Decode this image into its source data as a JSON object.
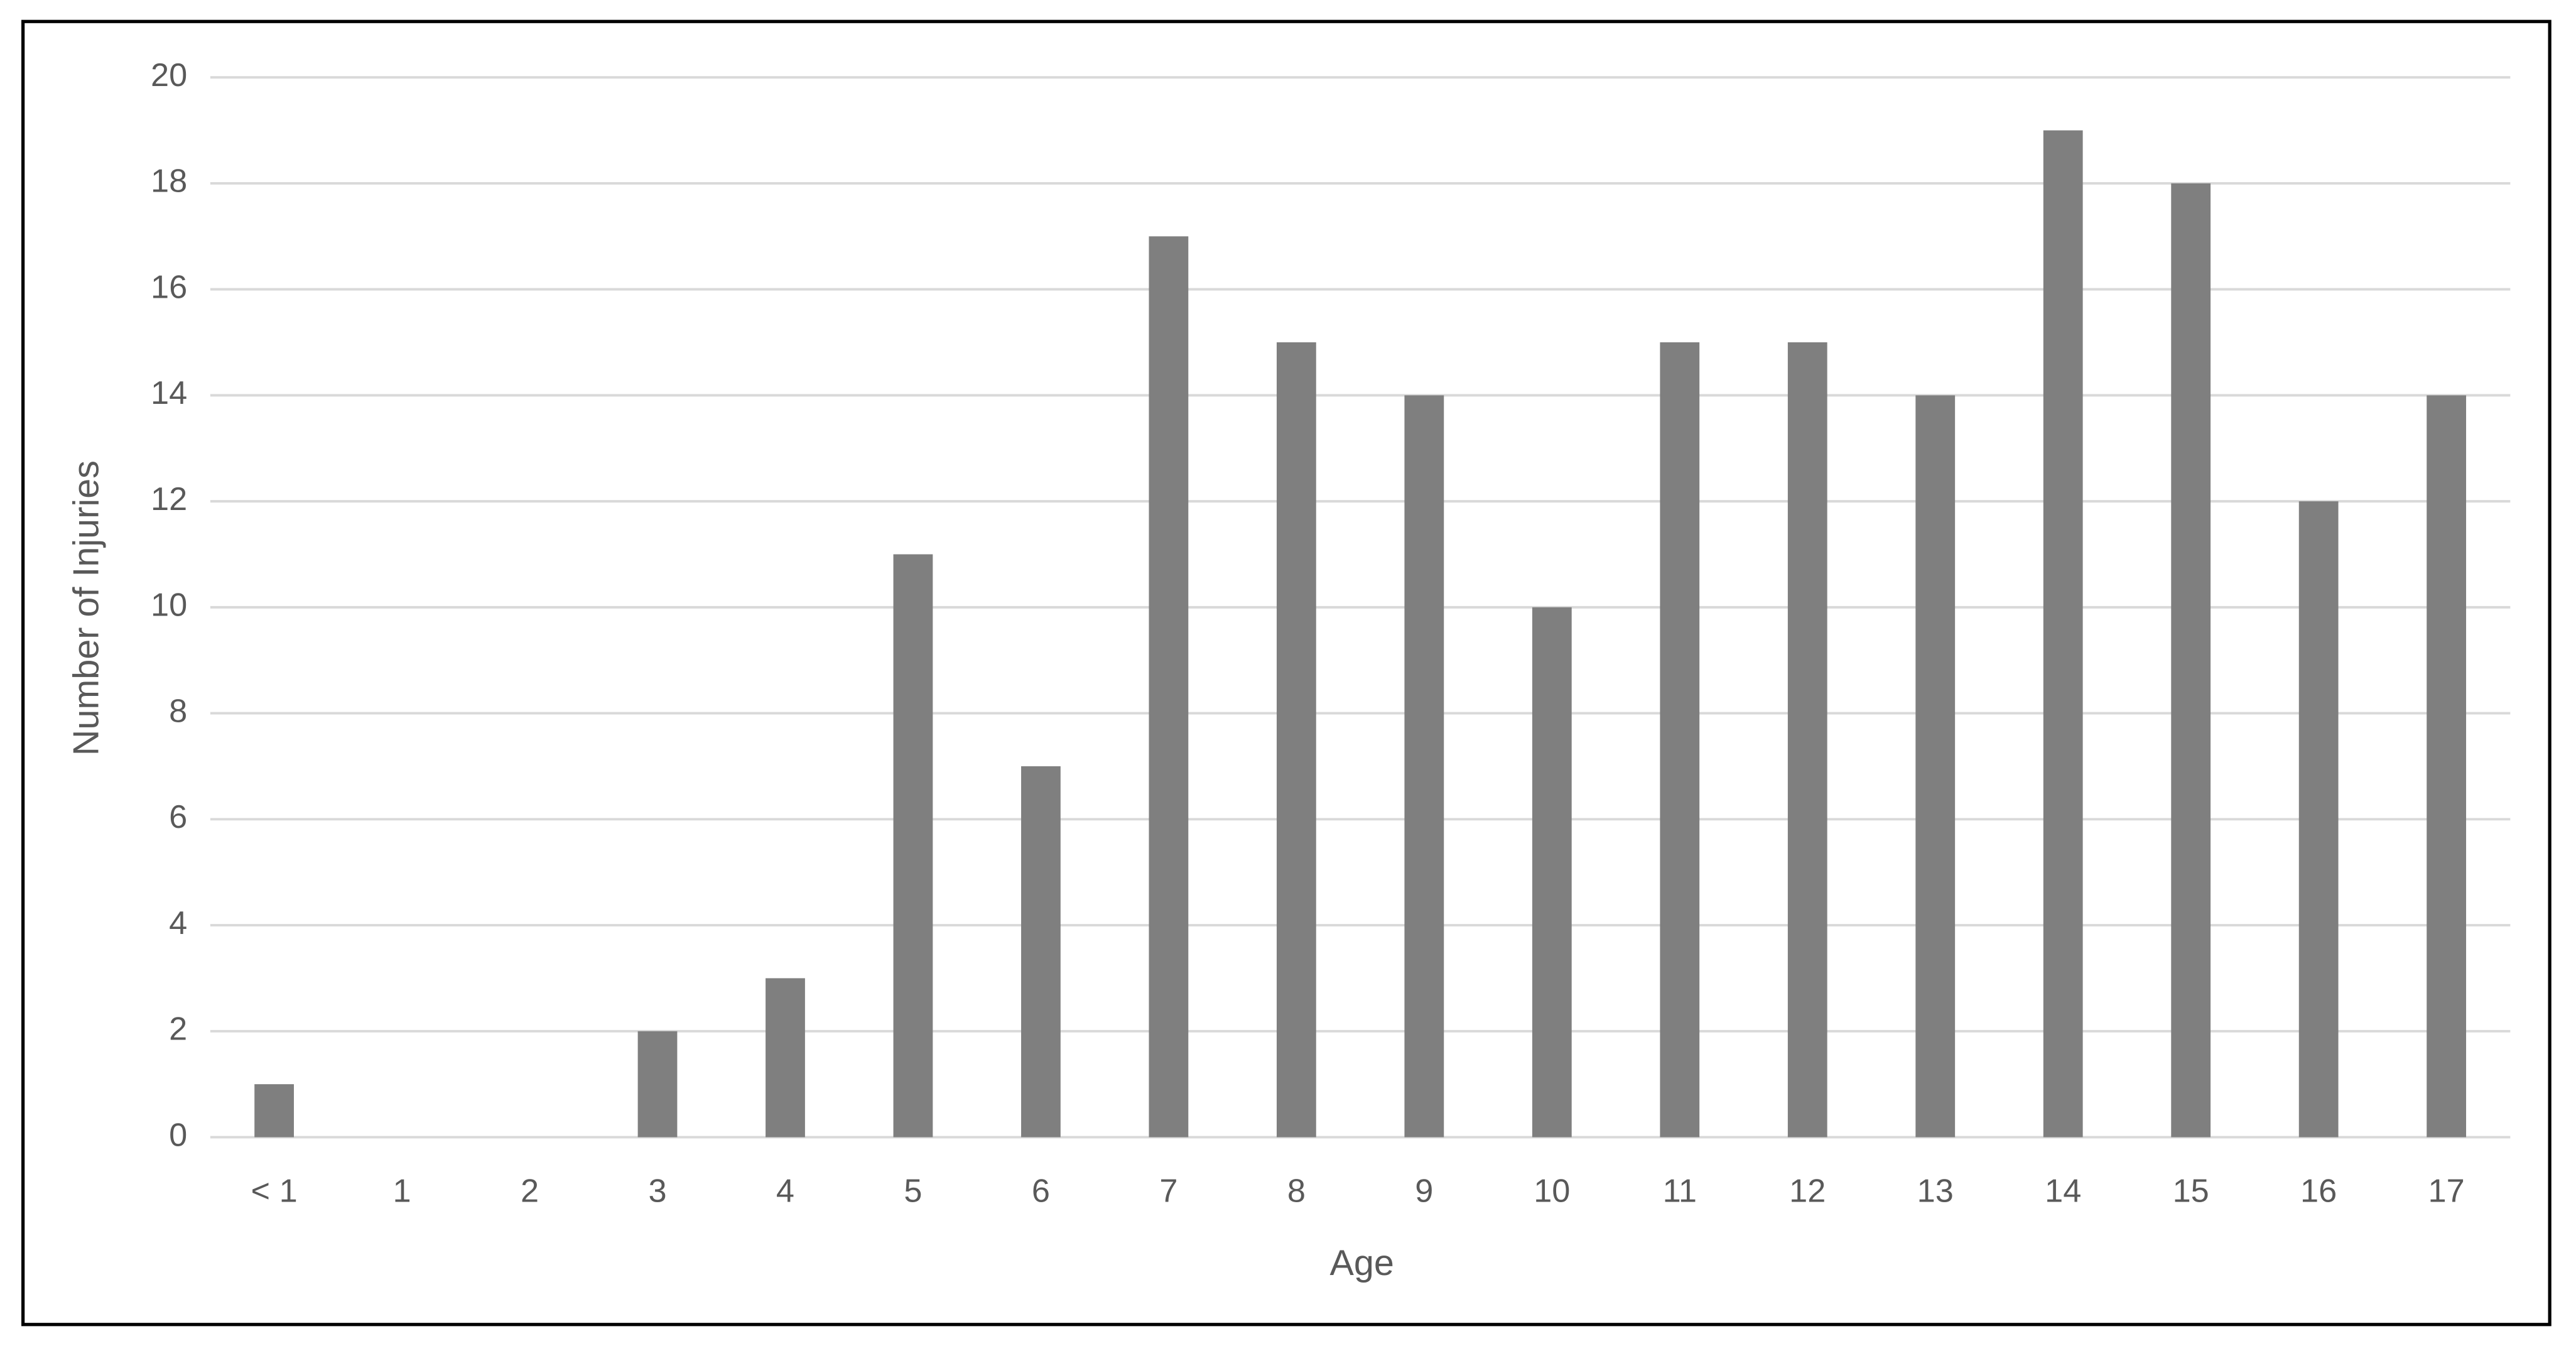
{
  "chart_data": {
    "type": "bar",
    "x_label": "Age",
    "y_label": "Number of Injuries",
    "categories": [
      "< 1",
      "1",
      "2",
      "3",
      "4",
      "5",
      "6",
      "7",
      "8",
      "9",
      "10",
      "11",
      "12",
      "13",
      "14",
      "15",
      "16",
      "17"
    ],
    "values": [
      1,
      0,
      0,
      2,
      3,
      11,
      7,
      17,
      15,
      14,
      10,
      15,
      15,
      14,
      19,
      18,
      12,
      14
    ],
    "color": "#7f7f7f",
    "ylim": [
      0,
      20
    ],
    "yticks": [
      0,
      2,
      4,
      6,
      8,
      10,
      12,
      14,
      16,
      18,
      20
    ],
    "grid": true
  }
}
